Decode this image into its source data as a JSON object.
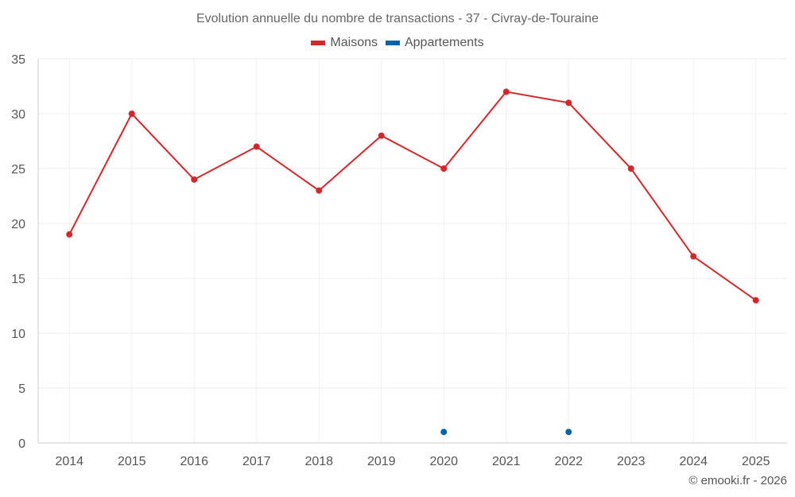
{
  "chart_data": {
    "type": "line",
    "title": "Evolution annuelle du nombre de transactions - 37 - Civray-de-Touraine",
    "categories": [
      "2014",
      "2015",
      "2016",
      "2017",
      "2018",
      "2019",
      "2020",
      "2021",
      "2022",
      "2023",
      "2024",
      "2025"
    ],
    "series": [
      {
        "name": "Maisons",
        "color": "#d0282b",
        "values": [
          19,
          30,
          24,
          27,
          23,
          28,
          25,
          32,
          31,
          25,
          17,
          13
        ]
      },
      {
        "name": "Appartements",
        "color": "#0a63a4",
        "values": [
          null,
          null,
          null,
          null,
          null,
          null,
          1,
          null,
          1,
          null,
          null,
          null
        ]
      }
    ],
    "ylim": [
      0,
      35
    ],
    "yticks": [
      0,
      5,
      10,
      15,
      20,
      25,
      30,
      35
    ],
    "grid": true,
    "legend": "top-center"
  },
  "credit": "© emooki.fr - 2026"
}
